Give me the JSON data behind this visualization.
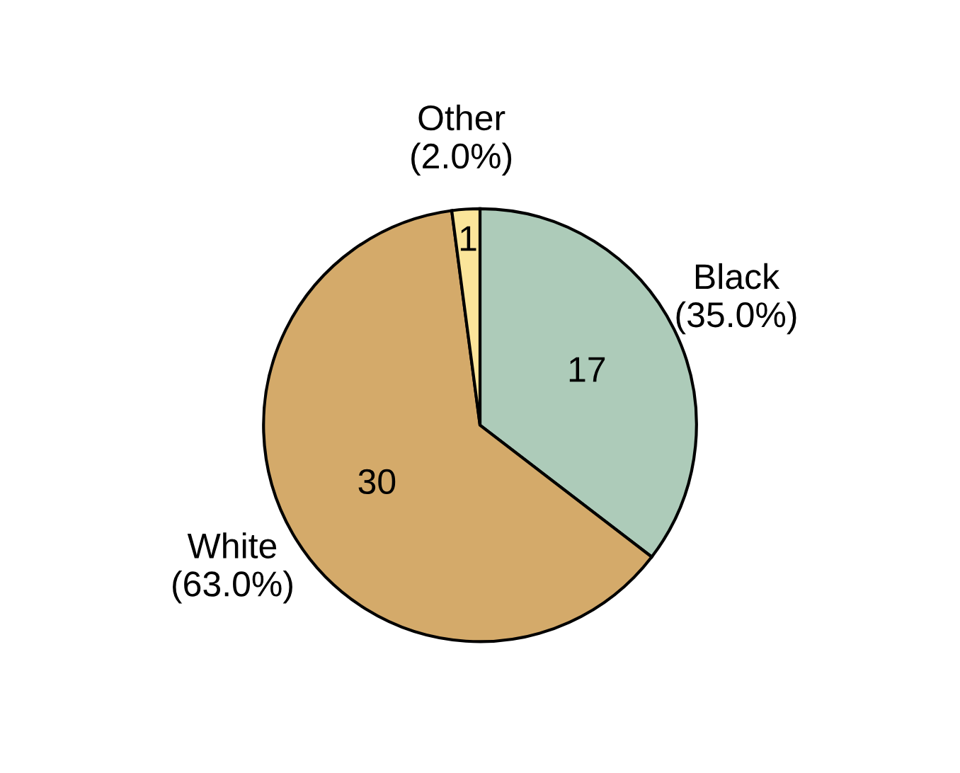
{
  "chart_data": {
    "type": "pie",
    "categories": [
      "Black\n(35.0%)",
      "White\n(63.0%)",
      "Other\n(2.0%)"
    ],
    "values": [
      17,
      30,
      1
    ],
    "colors": [
      "#adcbb9",
      "#d4aa6a",
      "#fbe59a"
    ],
    "data_labels": true
  }
}
